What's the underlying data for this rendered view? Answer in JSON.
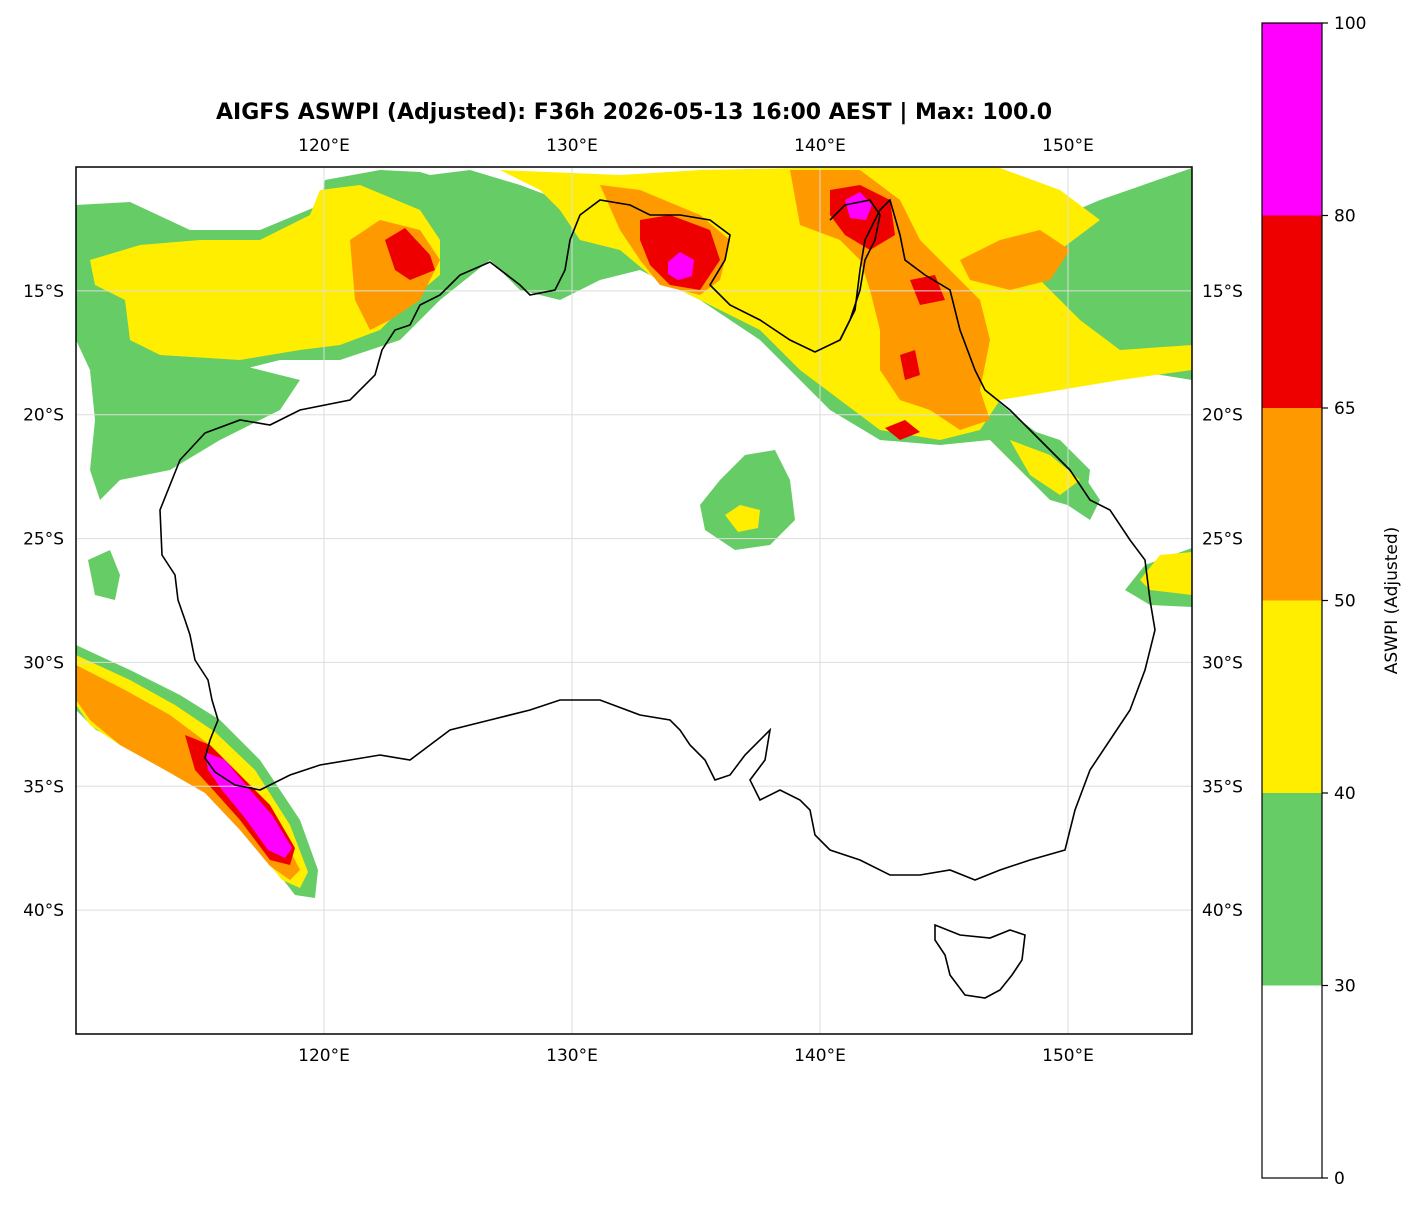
{
  "title": "AIGFS ASWPI (Adjusted): F36h 2026-05-13 16:00 AEST | Max: 100.0",
  "colorbar": {
    "label": "ASWPI (Adjusted)",
    "levels": [
      {
        "from": 0,
        "to": 30,
        "color": "#ffffff"
      },
      {
        "from": 30,
        "to": 40,
        "color": "#66cc66"
      },
      {
        "from": 40,
        "to": 50,
        "color": "#ffee00"
      },
      {
        "from": 50,
        "to": 65,
        "color": "#ff9900"
      },
      {
        "from": 65,
        "to": 80,
        "color": "#ee0000"
      },
      {
        "from": 80,
        "to": 100,
        "color": "#ff00ff"
      }
    ],
    "tick_labels": [
      "0",
      "30",
      "40",
      "50",
      "65",
      "80",
      "100"
    ]
  },
  "map": {
    "lon_range": [
      110,
      155
    ],
    "lat_range": [
      -45,
      -10
    ],
    "lon_ticks": [
      {
        "value": 120,
        "label": "120°E"
      },
      {
        "value": 130,
        "label": "130°E"
      },
      {
        "value": 140,
        "label": "140°E"
      },
      {
        "value": 150,
        "label": "150°E"
      }
    ],
    "lat_ticks": [
      {
        "value": -15,
        "label": "15°S"
      },
      {
        "value": -20,
        "label": "20°S"
      },
      {
        "value": -25,
        "label": "25°S"
      },
      {
        "value": -30,
        "label": "30°S"
      },
      {
        "value": -35,
        "label": "35°S"
      },
      {
        "value": -40,
        "label": "40°S"
      }
    ],
    "gridlines": true,
    "colors": {
      "land_outline": "#000000",
      "grid": "#dddddd"
    }
  }
}
